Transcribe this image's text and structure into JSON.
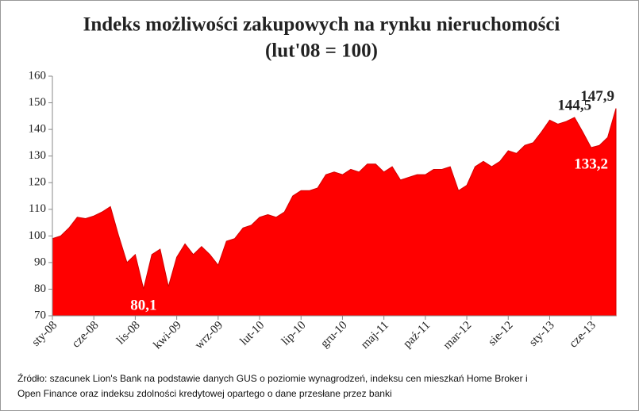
{
  "chart_data": {
    "type": "area",
    "title": [
      "Indeks możliwości zakupowych na rynku nieruchomości",
      "(lut'08 = 100)"
    ],
    "categories": [
      "sty-08",
      null,
      null,
      null,
      null,
      "cze-08",
      null,
      null,
      null,
      null,
      "lis-08",
      null,
      null,
      null,
      null,
      "kwi-09",
      null,
      null,
      null,
      null,
      "wrz-09",
      null,
      null,
      null,
      null,
      "lut-10",
      null,
      null,
      null,
      null,
      "lip-10",
      null,
      null,
      null,
      null,
      "gru-10",
      null,
      null,
      null,
      null,
      "maj-11",
      null,
      null,
      null,
      null,
      "paź-11",
      null,
      null,
      null,
      null,
      "mar-12",
      null,
      null,
      null,
      null,
      "sie-12",
      null,
      null,
      null,
      null,
      "sty-13",
      null,
      null,
      null,
      null,
      "cze-13",
      null,
      null,
      null
    ],
    "values": [
      99,
      100,
      103,
      107,
      106.5,
      107.5,
      109,
      111,
      100,
      90,
      93,
      80.1,
      93,
      95,
      81,
      92,
      97,
      93,
      96,
      93,
      89,
      98,
      99,
      103,
      104,
      107,
      108,
      107,
      109,
      115,
      117,
      117,
      118,
      123,
      124,
      123,
      125,
      124,
      127,
      127,
      124,
      126,
      121,
      122,
      123,
      123,
      125,
      125,
      126,
      117,
      119,
      126,
      128,
      126,
      128,
      132,
      131,
      134,
      135,
      139,
      143.5,
      142,
      143,
      144.5,
      139,
      133.2,
      134,
      137,
      147.9
    ],
    "value_labels": [
      null,
      null,
      null,
      null,
      null,
      null,
      null,
      null,
      null,
      null,
      null,
      "80,1",
      null,
      null,
      null,
      null,
      null,
      null,
      null,
      null,
      null,
      null,
      null,
      null,
      null,
      null,
      null,
      null,
      null,
      null,
      null,
      null,
      null,
      null,
      null,
      null,
      null,
      null,
      null,
      null,
      null,
      null,
      null,
      null,
      null,
      null,
      null,
      null,
      null,
      null,
      null,
      null,
      null,
      null,
      null,
      null,
      null,
      null,
      null,
      null,
      null,
      null,
      null,
      "144,5",
      null,
      "133,2",
      null,
      null,
      "147,9"
    ],
    "color": "#ff0000",
    "ylim": [
      70,
      160
    ],
    "yticks": [
      70,
      80,
      90,
      100,
      110,
      120,
      130,
      140,
      150,
      160
    ],
    "grid": false,
    "source": [
      "Źródło: szacunek Lion's Bank na podstawie danych GUS o poziomie wynagrodzeń, indeksu cen mieszkań Home Broker i",
      "Open Finance oraz indeksu zdolności kredytowej opartego o dane przesłane przez banki"
    ]
  }
}
